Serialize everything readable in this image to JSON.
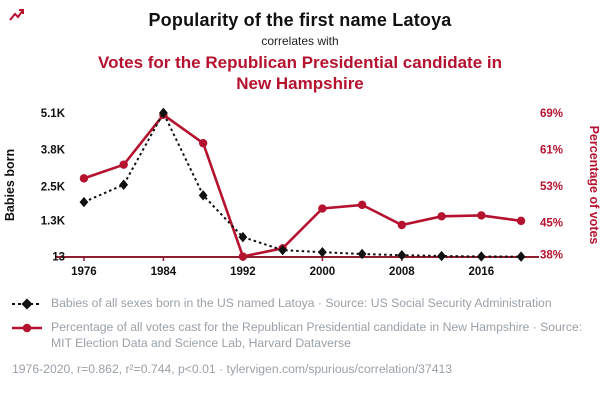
{
  "header": {
    "title": "Popularity of the first name Latoya",
    "subtitle": "correlates with",
    "red_title": "Votes for the Republican Presidential candidate in New Hampshire"
  },
  "colors": {
    "accent_red": "#b5122f",
    "axis_line": "#8e1f2f",
    "text_black": "#111111",
    "legend_gray": "#9aa1a7"
  },
  "chart_data": {
    "type": "line",
    "x": [
      1976,
      1980,
      1984,
      1988,
      1992,
      1996,
      2000,
      2004,
      2008,
      2012,
      2016,
      2020
    ],
    "x_ticks": [
      1976,
      1984,
      1992,
      2000,
      2008,
      2016
    ],
    "grid": false,
    "left_axis": {
      "label": "Babies born",
      "min": 0,
      "max": 5100,
      "ticks": [
        {
          "v": 5100,
          "label": "5.1K"
        },
        {
          "v": 3800,
          "label": "3.8K"
        },
        {
          "v": 2500,
          "label": "2.5K"
        },
        {
          "v": 1300,
          "label": "1.3K"
        },
        {
          "v": 13,
          "label": "13"
        }
      ]
    },
    "right_axis": {
      "label": "Percentage of votes",
      "min": 37.5,
      "max": 69,
      "ticks": [
        {
          "v": 69,
          "label": "69%"
        },
        {
          "v": 61,
          "label": "61%"
        },
        {
          "v": 53,
          "label": "53%"
        },
        {
          "v": 45,
          "label": "45%"
        },
        {
          "v": 38,
          "label": "38%"
        }
      ]
    },
    "series": [
      {
        "name": "Babies of all sexes born in the US named Latoya",
        "axis": "left",
        "color": "#111111",
        "line_style": "dashed",
        "marker": "diamond",
        "values": [
          1945,
          2559,
          5104,
          2184,
          704,
          244,
          170,
          107,
          64,
          34,
          19,
          13
        ]
      },
      {
        "name": "Percentage of all votes cast for the Republican Presidential candidate in New Hampshire",
        "axis": "right",
        "color": "#b5122f",
        "line_style": "solid",
        "marker": "circle",
        "values": [
          54.7,
          57.7,
          68.6,
          62.4,
          37.6,
          39.4,
          48.1,
          48.9,
          44.5,
          46.4,
          46.6,
          45.4
        ]
      }
    ]
  },
  "legend": {
    "items": [
      {
        "text": "Babies of all sexes born in the US named Latoya · Source: US Social Security Administration"
      },
      {
        "text": "Percentage of all votes cast for the Republican Presidential candidate in New Hampshire · Source: MIT Election Data and Science Lab, Harvard Dataverse"
      }
    ]
  },
  "footer": {
    "stats": "1976-2020, r=0.862, r²=0.744, p<0.01 · tylervigen.com/spurious/correlation/37413"
  }
}
